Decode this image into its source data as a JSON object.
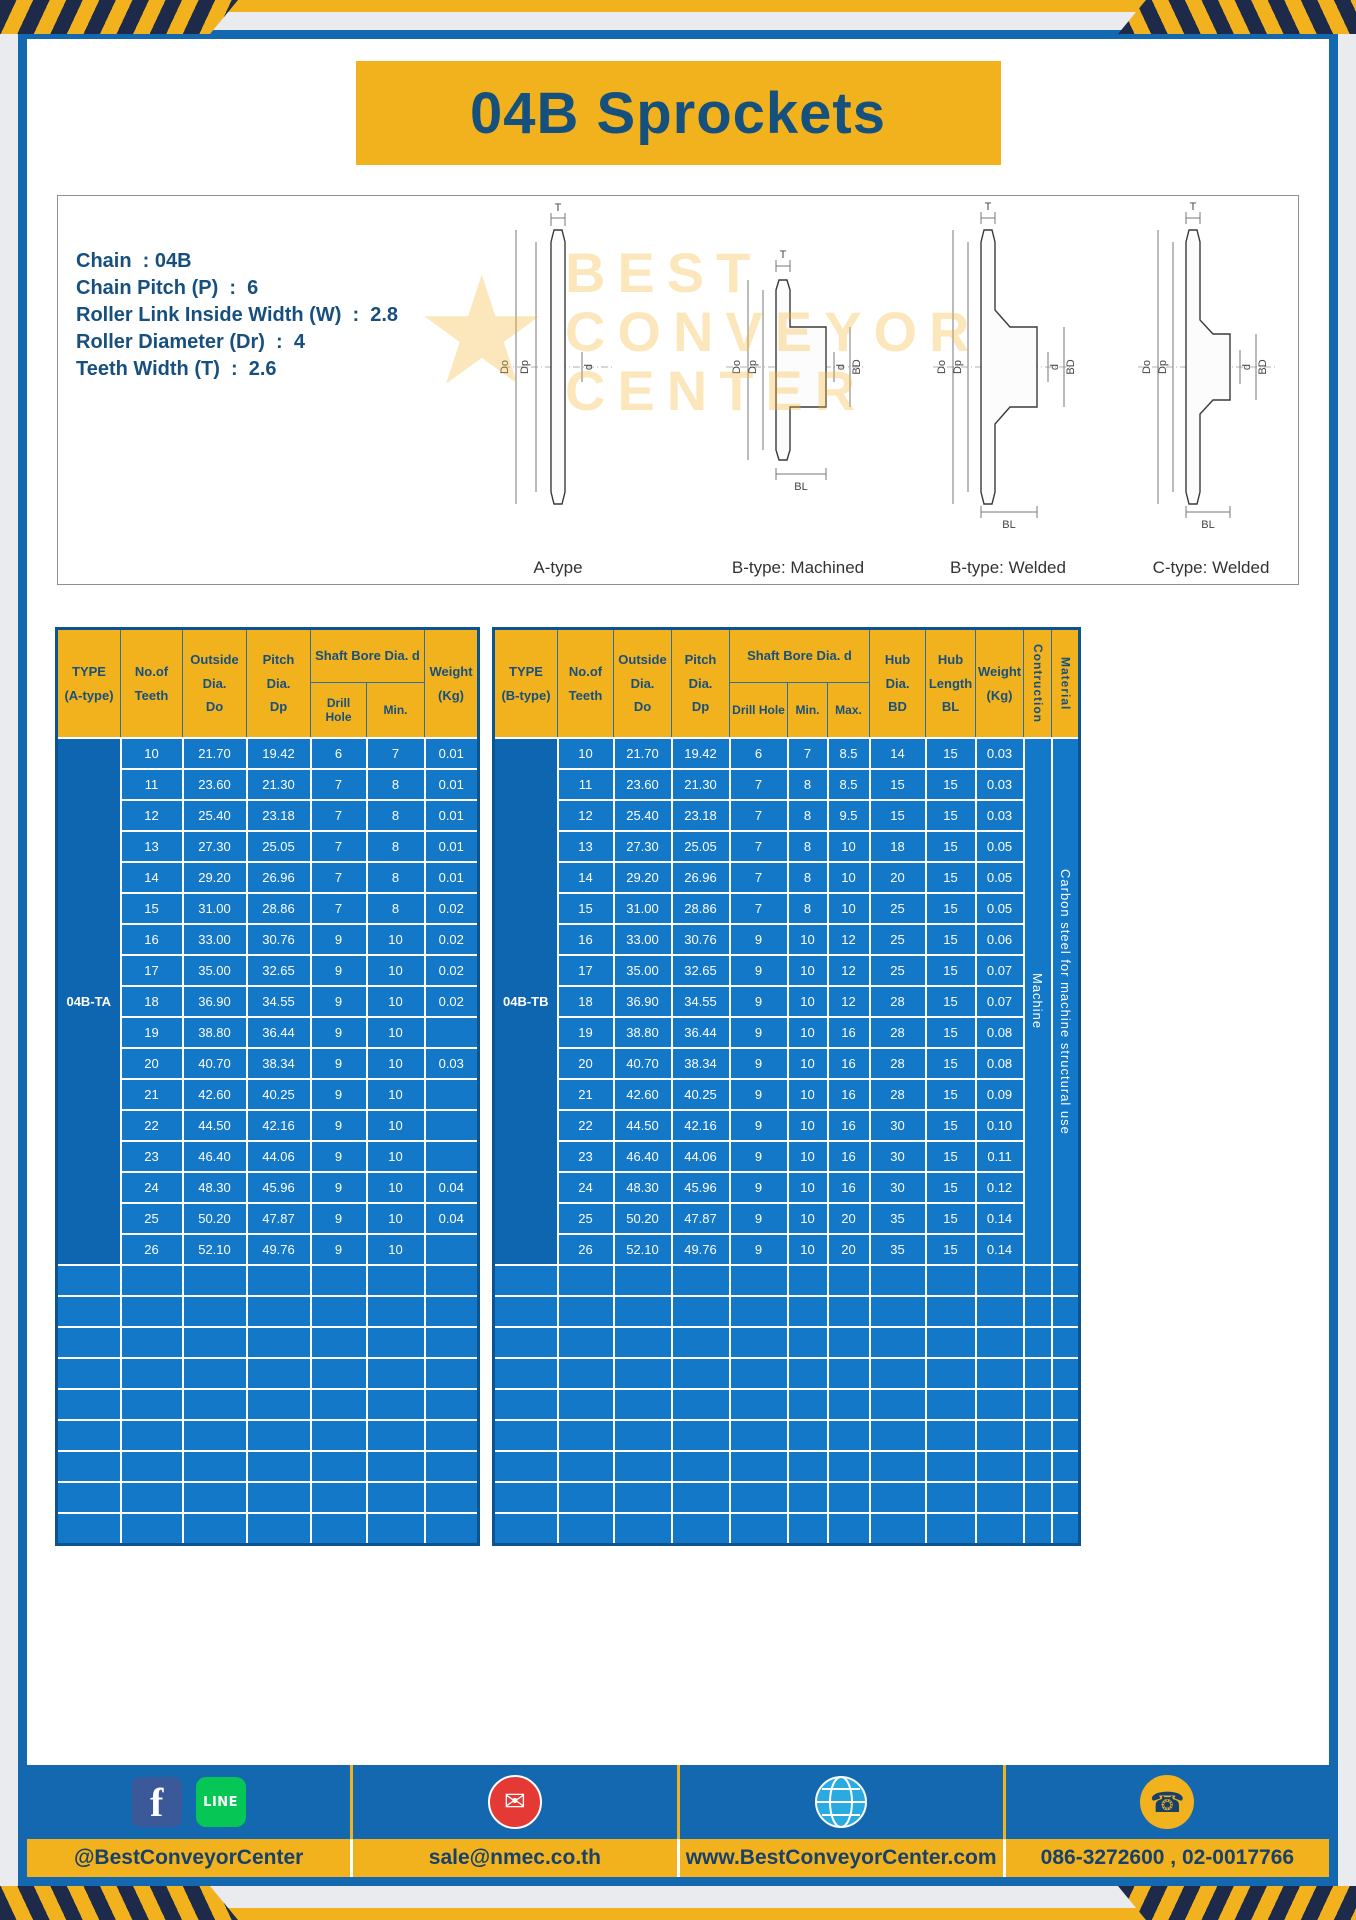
{
  "page": {
    "title": "04B Sprockets"
  },
  "colors": {
    "accent_yellow": "#F2B21E",
    "navy_text": "#17507E",
    "frame_blue": "#1368B0",
    "table_cell_blue": "#1478C8",
    "table_type_blue": "#0E66B0",
    "hazard_dark": "#1E2A4A"
  },
  "specs": [
    "Chain  : 04B",
    "Chain Pitch (P)  :  6",
    "Roller Link Inside Width (W)  :  2.8",
    "Roller Diameter (Dr)  :  4",
    "Teeth Width (T)  :  2.6"
  ],
  "drawings": {
    "watermark": [
      "BEST",
      "CONVEYOR",
      "CENTER"
    ],
    "labels": [
      "A-type",
      "B-type: Machined",
      "B-type: Welded",
      "C-type: Welded"
    ],
    "dims": {
      "t": "T",
      "do": "Do",
      "dp": "Dp",
      "d": "d",
      "bd": "BD",
      "bl": "BL"
    }
  },
  "table_a": {
    "headers": {
      "type": "TYPE\n(A-type)",
      "teeth": "No.of\nTeeth",
      "outside": "Outside\nDia.\nDo",
      "pitch": "Pitch Dia.\nDp",
      "shaft": "Shaft Bore Dia. d",
      "drill": "Drill Hole",
      "min": "Min.",
      "weight": "Weight\n(Kg)"
    },
    "type_label": "04B-TA",
    "empty_rows": 9,
    "rows": [
      [
        "10",
        "21.70",
        "19.42",
        "6",
        "7",
        "0.01"
      ],
      [
        "11",
        "23.60",
        "21.30",
        "7",
        "8",
        "0.01"
      ],
      [
        "12",
        "25.40",
        "23.18",
        "7",
        "8",
        "0.01"
      ],
      [
        "13",
        "27.30",
        "25.05",
        "7",
        "8",
        "0.01"
      ],
      [
        "14",
        "29.20",
        "26.96",
        "7",
        "8",
        "0.01"
      ],
      [
        "15",
        "31.00",
        "28.86",
        "7",
        "8",
        "0.02"
      ],
      [
        "16",
        "33.00",
        "30.76",
        "9",
        "10",
        "0.02"
      ],
      [
        "17",
        "35.00",
        "32.65",
        "9",
        "10",
        "0.02"
      ],
      [
        "18",
        "36.90",
        "34.55",
        "9",
        "10",
        "0.02"
      ],
      [
        "19",
        "38.80",
        "36.44",
        "9",
        "10",
        ""
      ],
      [
        "20",
        "40.70",
        "38.34",
        "9",
        "10",
        "0.03"
      ],
      [
        "21",
        "42.60",
        "40.25",
        "9",
        "10",
        ""
      ],
      [
        "22",
        "44.50",
        "42.16",
        "9",
        "10",
        ""
      ],
      [
        "23",
        "46.40",
        "44.06",
        "9",
        "10",
        ""
      ],
      [
        "24",
        "48.30",
        "45.96",
        "9",
        "10",
        "0.04"
      ],
      [
        "25",
        "50.20",
        "47.87",
        "9",
        "10",
        "0.04"
      ],
      [
        "26",
        "52.10",
        "49.76",
        "9",
        "10",
        ""
      ]
    ]
  },
  "table_b": {
    "headers": {
      "type": "TYPE\n(B-type)",
      "teeth": "No.of\nTeeth",
      "outside": "Outside\nDia.\nDo",
      "pitch": "Pitch Dia.\nDp",
      "shaft": "Shaft Bore Dia. d",
      "drill": "Drill Hole",
      "min": "Min.",
      "max": "Max.",
      "hub_dia": "Hub Dia.\nBD",
      "hub_len": "Hub\nLength\nBL",
      "weight": "Weight\n(Kg)",
      "construction": "Contruction",
      "material": "Material"
    },
    "type_label": "04B-TB",
    "construction_value": "Machine",
    "material_value": "Carbon steel for machine structural use",
    "empty_rows": 9,
    "rows": [
      [
        "10",
        "21.70",
        "19.42",
        "6",
        "7",
        "8.5",
        "14",
        "15",
        "0.03"
      ],
      [
        "11",
        "23.60",
        "21.30",
        "7",
        "8",
        "8.5",
        "15",
        "15",
        "0.03"
      ],
      [
        "12",
        "25.40",
        "23.18",
        "7",
        "8",
        "9.5",
        "15",
        "15",
        "0.03"
      ],
      [
        "13",
        "27.30",
        "25.05",
        "7",
        "8",
        "10",
        "18",
        "15",
        "0.05"
      ],
      [
        "14",
        "29.20",
        "26.96",
        "7",
        "8",
        "10",
        "20",
        "15",
        "0.05"
      ],
      [
        "15",
        "31.00",
        "28.86",
        "7",
        "8",
        "10",
        "25",
        "15",
        "0.05"
      ],
      [
        "16",
        "33.00",
        "30.76",
        "9",
        "10",
        "12",
        "25",
        "15",
        "0.06"
      ],
      [
        "17",
        "35.00",
        "32.65",
        "9",
        "10",
        "12",
        "25",
        "15",
        "0.07"
      ],
      [
        "18",
        "36.90",
        "34.55",
        "9",
        "10",
        "12",
        "28",
        "15",
        "0.07"
      ],
      [
        "19",
        "38.80",
        "36.44",
        "9",
        "10",
        "16",
        "28",
        "15",
        "0.08"
      ],
      [
        "20",
        "40.70",
        "38.34",
        "9",
        "10",
        "16",
        "28",
        "15",
        "0.08"
      ],
      [
        "21",
        "42.60",
        "40.25",
        "9",
        "10",
        "16",
        "28",
        "15",
        "0.09"
      ],
      [
        "22",
        "44.50",
        "42.16",
        "9",
        "10",
        "16",
        "30",
        "15",
        "0.10"
      ],
      [
        "23",
        "46.40",
        "44.06",
        "9",
        "10",
        "16",
        "30",
        "15",
        "0.11"
      ],
      [
        "24",
        "48.30",
        "45.96",
        "9",
        "10",
        "16",
        "30",
        "15",
        "0.12"
      ],
      [
        "25",
        "50.20",
        "47.87",
        "9",
        "10",
        "20",
        "35",
        "15",
        "0.14"
      ],
      [
        "26",
        "52.10",
        "49.76",
        "9",
        "10",
        "20",
        "35",
        "15",
        "0.14"
      ]
    ]
  },
  "footer": {
    "sections": [
      {
        "label": "@BestConveyorCenter",
        "icons": [
          "facebook-icon",
          "line-icon"
        ]
      },
      {
        "label": "sale@nmec.co.th",
        "icons": [
          "email-icon"
        ]
      },
      {
        "label": "www.BestConveyorCenter.com",
        "icons": [
          "globe-icon"
        ]
      },
      {
        "label": "086-3272600 , 02-0017766",
        "icons": [
          "phone-icon"
        ]
      }
    ],
    "glyphs": {
      "facebook": "f",
      "line": "LINE",
      "email": "✉",
      "phone": "☎",
      "star": "★"
    }
  }
}
